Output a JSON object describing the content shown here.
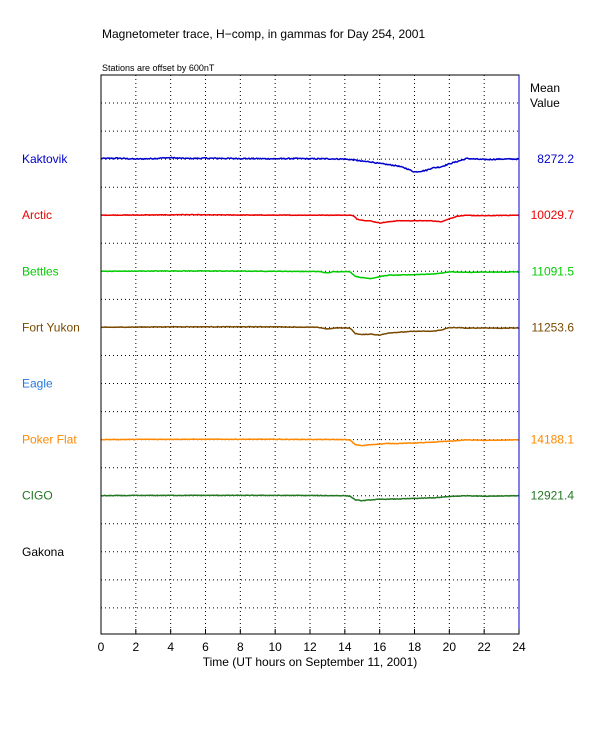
{
  "chart_data": {
    "type": "line",
    "title": "Magnetometer trace, H−comp, in gammas for Day 254, 2001",
    "subtitle": "Stations are offset by  600nT",
    "xlabel": "Time (UT hours on September 11, 2001)",
    "ylabel": "",
    "mean_header": [
      "Mean",
      "Value"
    ],
    "xlim": [
      0,
      24
    ],
    "x_ticks": [
      0,
      2,
      4,
      6,
      8,
      10,
      12,
      14,
      16,
      18,
      20,
      22,
      24
    ],
    "grid": true,
    "row_units": "nT",
    "row_range": [
      -100,
      100
    ],
    "station_offset_nT": 600,
    "series": [
      {
        "name": "Kaktovik",
        "color": "#0000cc",
        "mean": "8272.2",
        "row": 0,
        "noise": 4,
        "points": [
          [
            0,
            2
          ],
          [
            1,
            3
          ],
          [
            2,
            0
          ],
          [
            3,
            2
          ],
          [
            4,
            5
          ],
          [
            4.5,
            3
          ],
          [
            5,
            2
          ],
          [
            6,
            3
          ],
          [
            8,
            2
          ],
          [
            10,
            1
          ],
          [
            11,
            2
          ],
          [
            12,
            1
          ],
          [
            13,
            1
          ],
          [
            14,
            0
          ],
          [
            14.5,
            -3
          ],
          [
            15,
            -8
          ],
          [
            15.5,
            -10
          ],
          [
            16,
            -16
          ],
          [
            16.5,
            -20
          ],
          [
            17,
            -24
          ],
          [
            17.5,
            -33
          ],
          [
            18,
            -46
          ],
          [
            18.3,
            -44
          ],
          [
            18.7,
            -40
          ],
          [
            19,
            -32
          ],
          [
            19.5,
            -28
          ],
          [
            20,
            -17
          ],
          [
            20.5,
            -8
          ],
          [
            21,
            2
          ],
          [
            21.5,
            0
          ],
          [
            22,
            -2
          ],
          [
            23,
            0
          ],
          [
            24,
            0
          ]
        ]
      },
      {
        "name": "Arctic",
        "color": "#ee0000",
        "mean": "10029.7",
        "row": 1,
        "noise": 2,
        "points": [
          [
            0,
            0
          ],
          [
            4,
            1
          ],
          [
            4.5,
            2
          ],
          [
            6,
            1
          ],
          [
            10,
            0
          ],
          [
            14.3,
            0
          ],
          [
            14.5,
            -3
          ],
          [
            14.7,
            -14
          ],
          [
            15,
            -18
          ],
          [
            15.5,
            -21
          ],
          [
            16,
            -28
          ],
          [
            16.5,
            -24
          ],
          [
            17,
            -20
          ],
          [
            18,
            -20
          ],
          [
            19,
            -20
          ],
          [
            19.5,
            -24
          ],
          [
            20,
            -13
          ],
          [
            20.5,
            -3
          ],
          [
            21,
            -1
          ],
          [
            22,
            -2
          ],
          [
            23,
            -1
          ],
          [
            24,
            0
          ]
        ]
      },
      {
        "name": "Bettles",
        "color": "#00cc00",
        "mean": "11091.5",
        "row": 2,
        "noise": 2,
        "points": [
          [
            0,
            0
          ],
          [
            4,
            1
          ],
          [
            6,
            1
          ],
          [
            10,
            0
          ],
          [
            12.5,
            -1
          ],
          [
            13,
            -6
          ],
          [
            13.3,
            -2
          ],
          [
            14,
            -1
          ],
          [
            14.3,
            -2
          ],
          [
            14.6,
            -18
          ],
          [
            15,
            -23
          ],
          [
            15.5,
            -26
          ],
          [
            16,
            -19
          ],
          [
            16.5,
            -14
          ],
          [
            17,
            -14
          ],
          [
            18,
            -12
          ],
          [
            19,
            -10
          ],
          [
            19.5,
            -7
          ],
          [
            20,
            -2
          ],
          [
            20.5,
            -3
          ],
          [
            21,
            -4
          ],
          [
            22,
            -3
          ],
          [
            23,
            -3
          ],
          [
            24,
            -2
          ]
        ]
      },
      {
        "name": "Fort Yukon",
        "color": "#7a4a00",
        "mean": "11253.6",
        "row": 3,
        "noise": 2,
        "points": [
          [
            0,
            0
          ],
          [
            4,
            2
          ],
          [
            6,
            2
          ],
          [
            10,
            2
          ],
          [
            12.5,
            0
          ],
          [
            13,
            -6
          ],
          [
            13.5,
            -2
          ],
          [
            14,
            -2
          ],
          [
            14.3,
            -3
          ],
          [
            14.6,
            -22
          ],
          [
            15,
            -26
          ],
          [
            15.5,
            -24
          ],
          [
            16,
            -28
          ],
          [
            16.5,
            -20
          ],
          [
            17,
            -18
          ],
          [
            18,
            -14
          ],
          [
            19,
            -14
          ],
          [
            19.5,
            -10
          ],
          [
            20,
            -1
          ],
          [
            20.5,
            -1
          ],
          [
            21,
            -3
          ],
          [
            22,
            -2
          ],
          [
            23,
            -3
          ],
          [
            24,
            -2
          ]
        ]
      },
      {
        "name": "Eagle",
        "color": "#2277dd",
        "mean": "",
        "row": 4,
        "noise": 0,
        "points": []
      },
      {
        "name": "Poker Flat",
        "color": "#ff8800",
        "mean": "14188.1",
        "row": 5,
        "noise": 2,
        "points": [
          [
            0,
            0
          ],
          [
            4,
            1
          ],
          [
            6,
            1
          ],
          [
            10,
            1
          ],
          [
            14,
            0
          ],
          [
            14.3,
            -2
          ],
          [
            14.6,
            -18
          ],
          [
            15,
            -22
          ],
          [
            15.5,
            -18
          ],
          [
            16,
            -16
          ],
          [
            16.5,
            -14
          ],
          [
            17,
            -14
          ],
          [
            18,
            -12
          ],
          [
            19,
            -10
          ],
          [
            19.5,
            -7
          ],
          [
            20,
            -6
          ],
          [
            21,
            -1
          ],
          [
            22,
            -3
          ],
          [
            23,
            -2
          ],
          [
            24,
            -1
          ]
        ]
      },
      {
        "name": "CIGO",
        "color": "#227722",
        "mean": "12921.4",
        "row": 6,
        "noise": 2,
        "points": [
          [
            0,
            0
          ],
          [
            4,
            1
          ],
          [
            6,
            1
          ],
          [
            10,
            1
          ],
          [
            14,
            0
          ],
          [
            14.3,
            -2
          ],
          [
            14.6,
            -15
          ],
          [
            15,
            -18
          ],
          [
            15.5,
            -15
          ],
          [
            16,
            -13
          ],
          [
            17,
            -12
          ],
          [
            18,
            -10
          ],
          [
            19,
            -8
          ],
          [
            19.5,
            -6
          ],
          [
            20,
            -3
          ],
          [
            21,
            0
          ],
          [
            22,
            -2
          ],
          [
            23,
            -1
          ],
          [
            24,
            0
          ]
        ]
      },
      {
        "name": "Gakona",
        "color": "#000000",
        "mean": "",
        "row": 7,
        "noise": 0,
        "points": []
      }
    ]
  }
}
